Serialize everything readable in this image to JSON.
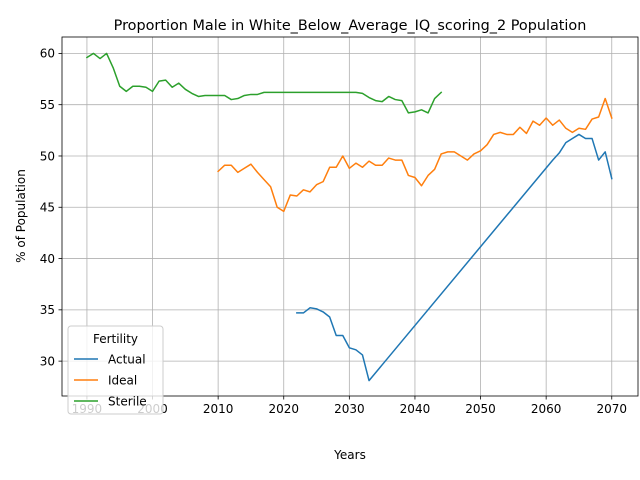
{
  "chart_data": {
    "type": "line",
    "title": "Proportion Male in White_Below_Average_IQ_scoring_2 Population",
    "xlabel": "Years",
    "ylabel": "% of Population",
    "xlim": [
      1986.2,
      2074.0
    ],
    "ylim": [
      26.6,
      61.6
    ],
    "xticks": [
      1990,
      2000,
      2010,
      2020,
      2030,
      2040,
      2050,
      2060,
      2070
    ],
    "yticks": [
      30,
      35,
      40,
      45,
      50,
      55,
      60
    ],
    "grid": true,
    "legend": {
      "title": "Fertility",
      "position": "lower-left"
    },
    "series": [
      {
        "name": "Actual",
        "color": "#1f77b4",
        "points": [
          [
            2022,
            34.7
          ],
          [
            2023,
            34.7
          ],
          [
            2024,
            35.2
          ],
          [
            2025,
            35.1
          ],
          [
            2026,
            34.8
          ],
          [
            2027,
            34.3
          ],
          [
            2028,
            32.5
          ],
          [
            2029,
            32.5
          ],
          [
            2030,
            31.3
          ],
          [
            2031,
            31.1
          ],
          [
            2032,
            30.6
          ],
          [
            2033,
            28.1
          ],
          [
            2061,
            49.6
          ],
          [
            2062,
            50.3
          ],
          [
            2063,
            51.3
          ],
          [
            2064,
            51.7
          ],
          [
            2065,
            52.1
          ],
          [
            2066,
            51.7
          ],
          [
            2067,
            51.7
          ],
          [
            2068,
            49.6
          ],
          [
            2069,
            50.4
          ],
          [
            2070,
            47.8
          ]
        ]
      },
      {
        "name": "Ideal",
        "color": "#ff7f0e",
        "points": [
          [
            2010,
            48.5
          ],
          [
            2011,
            49.1
          ],
          [
            2012,
            49.1
          ],
          [
            2013,
            48.4
          ],
          [
            2014,
            48.8
          ],
          [
            2015,
            49.2
          ],
          [
            2016,
            48.4
          ],
          [
            2017,
            47.7
          ],
          [
            2018,
            47.0
          ],
          [
            2019,
            45.0
          ],
          [
            2020,
            44.6
          ],
          [
            2021,
            46.2
          ],
          [
            2022,
            46.1
          ],
          [
            2023,
            46.7
          ],
          [
            2024,
            46.5
          ],
          [
            2025,
            47.2
          ],
          [
            2026,
            47.5
          ],
          [
            2027,
            48.9
          ],
          [
            2028,
            48.9
          ],
          [
            2029,
            50.0
          ],
          [
            2030,
            48.8
          ],
          [
            2031,
            49.3
          ],
          [
            2032,
            48.9
          ],
          [
            2033,
            49.5
          ],
          [
            2034,
            49.1
          ],
          [
            2035,
            49.1
          ],
          [
            2036,
            49.8
          ],
          [
            2037,
            49.6
          ],
          [
            2038,
            49.6
          ],
          [
            2039,
            48.1
          ],
          [
            2040,
            47.9
          ],
          [
            2041,
            47.1
          ],
          [
            2042,
            48.1
          ],
          [
            2043,
            48.7
          ],
          [
            2044,
            50.2
          ],
          [
            2045,
            50.4
          ],
          [
            2046,
            50.4
          ],
          [
            2047,
            50.0
          ],
          [
            2048,
            49.6
          ],
          [
            2049,
            50.2
          ],
          [
            2050,
            50.5
          ],
          [
            2051,
            51.1
          ],
          [
            2052,
            52.1
          ],
          [
            2053,
            52.3
          ],
          [
            2054,
            52.1
          ],
          [
            2055,
            52.1
          ],
          [
            2056,
            52.8
          ],
          [
            2057,
            52.2
          ],
          [
            2058,
            53.4
          ],
          [
            2059,
            53.0
          ],
          [
            2060,
            53.7
          ],
          [
            2061,
            53.0
          ],
          [
            2062,
            53.5
          ],
          [
            2063,
            52.7
          ],
          [
            2064,
            52.3
          ],
          [
            2065,
            52.7
          ],
          [
            2066,
            52.6
          ],
          [
            2067,
            53.6
          ],
          [
            2068,
            53.8
          ],
          [
            2069,
            55.6
          ],
          [
            2070,
            53.7
          ]
        ]
      },
      {
        "name": "Sterile",
        "color": "#2ca02c",
        "points": [
          [
            1990,
            59.6
          ],
          [
            1991,
            60.0
          ],
          [
            1992,
            59.5
          ],
          [
            1993,
            60.0
          ],
          [
            1994,
            58.6
          ],
          [
            1995,
            56.8
          ],
          [
            1996,
            56.3
          ],
          [
            1997,
            56.8
          ],
          [
            1998,
            56.8
          ],
          [
            1999,
            56.7
          ],
          [
            2000,
            56.3
          ],
          [
            2001,
            57.3
          ],
          [
            2002,
            57.4
          ],
          [
            2003,
            56.7
          ],
          [
            2004,
            57.1
          ],
          [
            2005,
            56.5
          ],
          [
            2006,
            56.1
          ],
          [
            2007,
            55.8
          ],
          [
            2008,
            55.9
          ],
          [
            2009,
            55.9
          ],
          [
            2010,
            55.9
          ],
          [
            2011,
            55.9
          ],
          [
            2012,
            55.5
          ],
          [
            2013,
            55.6
          ],
          [
            2014,
            55.9
          ],
          [
            2015,
            56.0
          ],
          [
            2016,
            56.0
          ],
          [
            2017,
            56.2
          ],
          [
            2018,
            56.2
          ],
          [
            2019,
            56.2
          ],
          [
            2020,
            56.2
          ],
          [
            2021,
            56.2
          ],
          [
            2022,
            56.2
          ],
          [
            2023,
            56.2
          ],
          [
            2024,
            56.2
          ],
          [
            2025,
            56.2
          ],
          [
            2026,
            56.2
          ],
          [
            2027,
            56.2
          ],
          [
            2028,
            56.2
          ],
          [
            2029,
            56.2
          ],
          [
            2030,
            56.2
          ],
          [
            2031,
            56.2
          ],
          [
            2032,
            56.1
          ],
          [
            2033,
            55.7
          ],
          [
            2034,
            55.4
          ],
          [
            2035,
            55.3
          ],
          [
            2036,
            55.8
          ],
          [
            2037,
            55.5
          ],
          [
            2038,
            55.4
          ],
          [
            2039,
            54.2
          ],
          [
            2040,
            54.3
          ],
          [
            2041,
            54.5
          ],
          [
            2042,
            54.2
          ],
          [
            2043,
            55.6
          ],
          [
            2044,
            56.2
          ]
        ]
      }
    ]
  }
}
